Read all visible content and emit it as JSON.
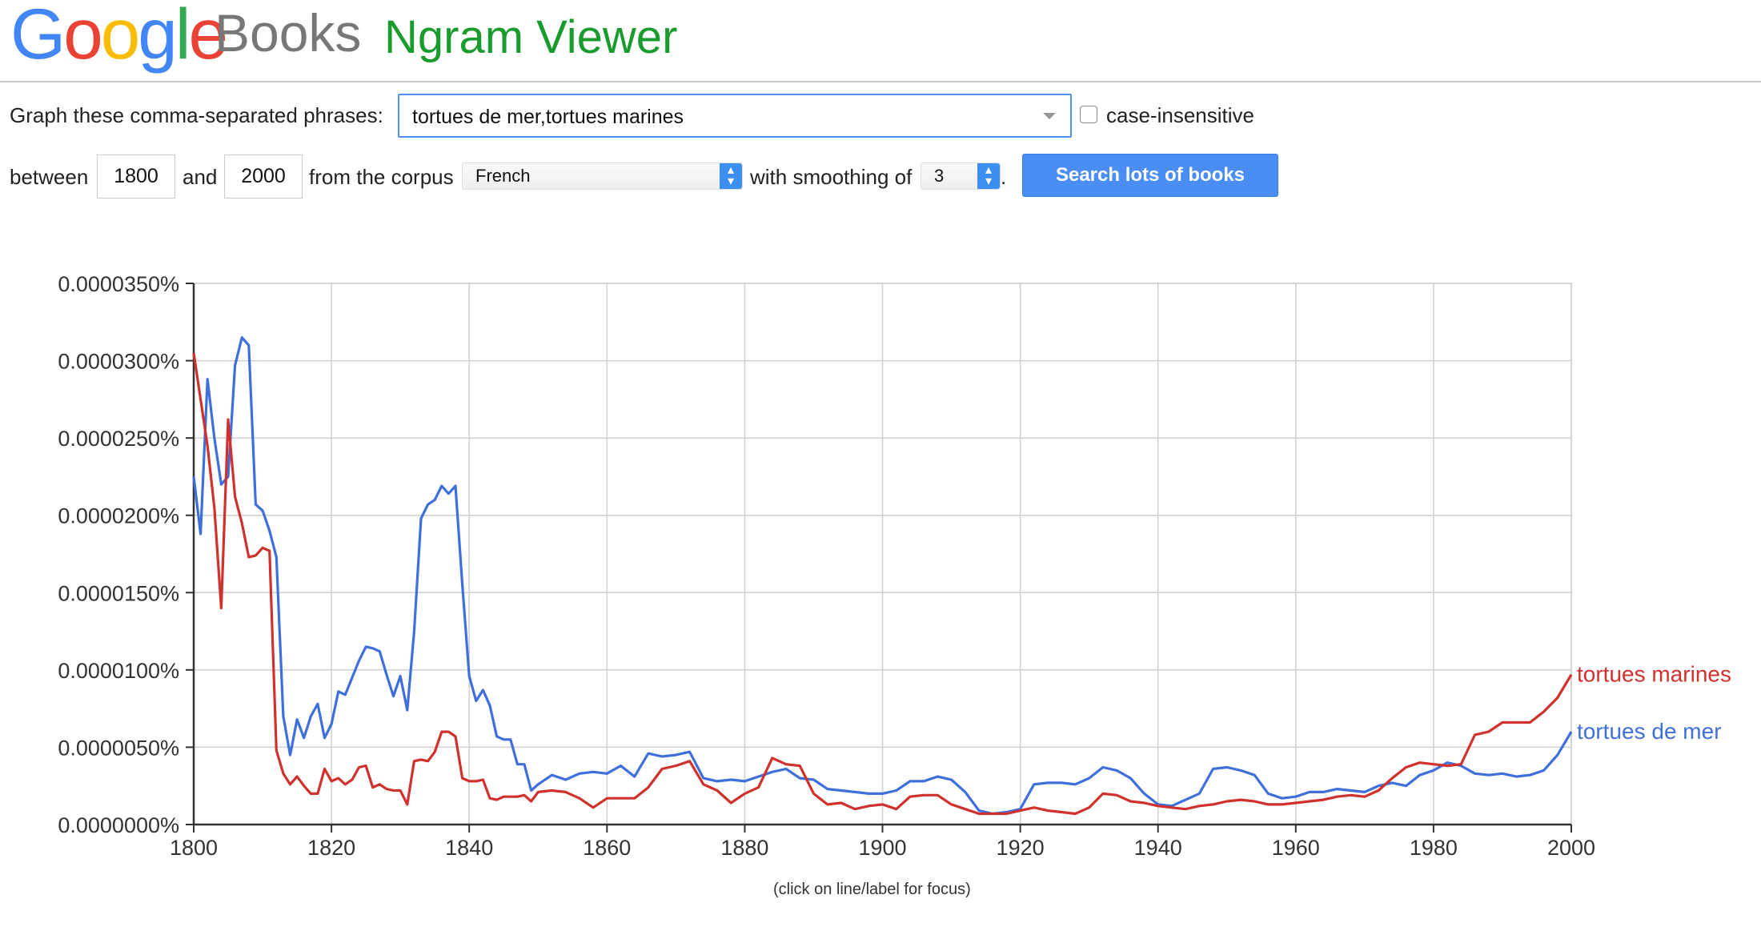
{
  "header": {
    "logo_google": [
      "G",
      "o",
      "o",
      "g",
      "l",
      "e"
    ],
    "logo_books": "Books",
    "title": "Ngram Viewer"
  },
  "form": {
    "phrases_label": "Graph these comma-separated phrases:",
    "phrases_value": "tortues de mer,tortues marines",
    "case_insensitive_label": "case-insensitive",
    "case_insensitive_checked": false,
    "between_label": "between",
    "start_year": "1800",
    "and_label": "and",
    "end_year": "2000",
    "corpus_label": "from the corpus",
    "corpus_value": "French",
    "smoothing_label": "with smoothing of",
    "smoothing_value": "3",
    "period": ".",
    "search_button": "Search lots of books"
  },
  "colors": {
    "google": [
      "#4285f4",
      "#ea4335",
      "#fbbc05",
      "#4285f4",
      "#34a853",
      "#ea4335"
    ],
    "title": "#1a9b2d",
    "series_blue": "#3f6fdc",
    "series_red": "#d0312d"
  },
  "caption": "(click on line/label for focus)",
  "chart_data": {
    "type": "line",
    "xlim": [
      1800,
      2000
    ],
    "ylim": [
      0,
      3.5e-05
    ],
    "ytick_labels": [
      "0.0000000%",
      "0.0000050%",
      "0.0000100%",
      "0.0000150%",
      "0.0000200%",
      "0.0000250%",
      "0.0000300%",
      "0.0000350%"
    ],
    "xtick_labels": [
      "1800",
      "1820",
      "1840",
      "1860",
      "1880",
      "1900",
      "1920",
      "1940",
      "1960",
      "1980",
      "2000"
    ],
    "grid": true,
    "legend": "right end of lines",
    "series": [
      {
        "name": "tortues de mer",
        "color": "#3f6fdc",
        "x": [
          1800,
          1801,
          1802,
          1803,
          1804,
          1805,
          1806,
          1807,
          1808,
          1809,
          1810,
          1811,
          1812,
          1813,
          1814,
          1815,
          1816,
          1817,
          1818,
          1819,
          1820,
          1821,
          1822,
          1823,
          1824,
          1825,
          1826,
          1827,
          1828,
          1829,
          1830,
          1831,
          1832,
          1833,
          1834,
          1835,
          1836,
          1837,
          1838,
          1839,
          1840,
          1841,
          1842,
          1843,
          1844,
          1845,
          1846,
          1847,
          1848,
          1849,
          1850,
          1852,
          1854,
          1856,
          1858,
          1860,
          1862,
          1864,
          1866,
          1868,
          1870,
          1872,
          1874,
          1876,
          1878,
          1880,
          1882,
          1884,
          1886,
          1888,
          1890,
          1892,
          1894,
          1896,
          1898,
          1900,
          1902,
          1904,
          1906,
          1908,
          1910,
          1912,
          1914,
          1916,
          1918,
          1920,
          1922,
          1924,
          1926,
          1928,
          1930,
          1932,
          1934,
          1936,
          1938,
          1940,
          1942,
          1944,
          1946,
          1948,
          1950,
          1952,
          1954,
          1956,
          1958,
          1960,
          1962,
          1964,
          1966,
          1968,
          1970,
          1972,
          1974,
          1976,
          1978,
          1980,
          1982,
          1984,
          1986,
          1988,
          1990,
          1992,
          1994,
          1996,
          1998,
          2000
        ],
        "y": [
          2.25e-05,
          1.88e-05,
          2.88e-05,
          2.5e-05,
          2.2e-05,
          2.25e-05,
          2.97e-05,
          3.15e-05,
          3.1e-05,
          2.07e-05,
          2.03e-05,
          1.9e-05,
          1.73e-05,
          7e-06,
          4.5e-06,
          6.8e-06,
          5.6e-06,
          7e-06,
          7.8e-06,
          5.6e-06,
          6.5e-06,
          8.6e-06,
          8.4e-06,
          9.5e-06,
          1.06e-05,
          1.15e-05,
          1.14e-05,
          1.12e-05,
          9.7e-06,
          8.3e-06,
          9.6e-06,
          7.4e-06,
          1.25e-05,
          1.98e-05,
          2.07e-05,
          2.1e-05,
          2.19e-05,
          2.14e-05,
          2.19e-05,
          1.55e-05,
          9.6e-06,
          8e-06,
          8.7e-06,
          7.7e-06,
          5.7e-06,
          5.5e-06,
          5.5e-06,
          3.9e-06,
          3.9e-06,
          2.2e-06,
          2.6e-06,
          3.2e-06,
          2.9e-06,
          3.3e-06,
          3.4e-06,
          3.3e-06,
          3.8e-06,
          3.1e-06,
          4.6e-06,
          4.4e-06,
          4.5e-06,
          4.7e-06,
          3e-06,
          2.8e-06,
          2.9e-06,
          2.8e-06,
          3.1e-06,
          3.4e-06,
          3.6e-06,
          3e-06,
          2.9e-06,
          2.3e-06,
          2.2e-06,
          2.1e-06,
          2e-06,
          2e-06,
          2.2e-06,
          2.8e-06,
          2.8e-06,
          3.1e-06,
          2.9e-06,
          2.1e-06,
          9e-07,
          7e-07,
          8e-07,
          1e-06,
          2.6e-06,
          2.7e-06,
          2.7e-06,
          2.6e-06,
          3e-06,
          3.7e-06,
          3.5e-06,
          3e-06,
          2e-06,
          1.3e-06,
          1.2e-06,
          1.6e-06,
          2e-06,
          3.6e-06,
          3.7e-06,
          3.5e-06,
          3.2e-06,
          2e-06,
          1.7e-06,
          1.8e-06,
          2.1e-06,
          2.1e-06,
          2.3e-06,
          2.2e-06,
          2.1e-06,
          2.5e-06,
          2.7e-06,
          2.5e-06,
          3.2e-06,
          3.5e-06,
          4e-06,
          3.8e-06,
          3.3e-06,
          3.2e-06,
          3.3e-06,
          3.1e-06,
          3.2e-06,
          3.5e-06,
          4.5e-06,
          6e-06
        ]
      },
      {
        "name": "tortues marines",
        "color": "#d0312d",
        "x": [
          1800,
          1801,
          1802,
          1803,
          1804,
          1805,
          1806,
          1807,
          1808,
          1809,
          1810,
          1811,
          1812,
          1813,
          1814,
          1815,
          1816,
          1817,
          1818,
          1819,
          1820,
          1821,
          1822,
          1823,
          1824,
          1825,
          1826,
          1827,
          1828,
          1829,
          1830,
          1831,
          1832,
          1833,
          1834,
          1835,
          1836,
          1837,
          1838,
          1839,
          1840,
          1841,
          1842,
          1843,
          1844,
          1845,
          1846,
          1847,
          1848,
          1849,
          1850,
          1852,
          1854,
          1856,
          1858,
          1860,
          1862,
          1864,
          1866,
          1868,
          1870,
          1872,
          1874,
          1876,
          1878,
          1880,
          1882,
          1884,
          1886,
          1888,
          1890,
          1892,
          1894,
          1896,
          1898,
          1900,
          1902,
          1904,
          1906,
          1908,
          1910,
          1912,
          1914,
          1916,
          1918,
          1920,
          1922,
          1924,
          1926,
          1928,
          1930,
          1932,
          1934,
          1936,
          1938,
          1940,
          1942,
          1944,
          1946,
          1948,
          1950,
          1952,
          1954,
          1956,
          1958,
          1960,
          1962,
          1964,
          1966,
          1968,
          1970,
          1972,
          1974,
          1976,
          1978,
          1980,
          1982,
          1984,
          1986,
          1988,
          1990,
          1992,
          1994,
          1996,
          1998,
          2000
        ],
        "y": [
          3.05e-05,
          2.75e-05,
          2.45e-05,
          2.05e-05,
          1.4e-05,
          2.62e-05,
          2.12e-05,
          1.95e-05,
          1.73e-05,
          1.74e-05,
          1.79e-05,
          1.77e-05,
          4.8e-06,
          3.3e-06,
          2.6e-06,
          3.1e-06,
          2.5e-06,
          2e-06,
          2e-06,
          3.6e-06,
          2.8e-06,
          3e-06,
          2.6e-06,
          2.9e-06,
          3.7e-06,
          3.8e-06,
          2.4e-06,
          2.6e-06,
          2.3e-06,
          2.2e-06,
          2.2e-06,
          1.3e-06,
          4.1e-06,
          4.2e-06,
          4.1e-06,
          4.7e-06,
          6e-06,
          6e-06,
          5.7e-06,
          3e-06,
          2.8e-06,
          2.8e-06,
          2.9e-06,
          1.7e-06,
          1.6e-06,
          1.8e-06,
          1.8e-06,
          1.8e-06,
          1.9e-06,
          1.5e-06,
          2.1e-06,
          2.2e-06,
          2.1e-06,
          1.7e-06,
          1.1e-06,
          1.7e-06,
          1.7e-06,
          1.7e-06,
          2.4e-06,
          3.6e-06,
          3.8e-06,
          4.1e-06,
          2.6e-06,
          2.2e-06,
          1.4e-06,
          2e-06,
          2.4e-06,
          4.3e-06,
          3.9e-06,
          3.8e-06,
          2e-06,
          1.3e-06,
          1.4e-06,
          1e-06,
          1.2e-06,
          1.3e-06,
          1e-06,
          1.8e-06,
          1.9e-06,
          1.9e-06,
          1.3e-06,
          1e-06,
          7e-07,
          7e-07,
          7e-07,
          9e-07,
          1.1e-06,
          9e-07,
          8e-07,
          7e-07,
          1.1e-06,
          2e-06,
          1.9e-06,
          1.5e-06,
          1.4e-06,
          1.2e-06,
          1.1e-06,
          1e-06,
          1.2e-06,
          1.3e-06,
          1.5e-06,
          1.6e-06,
          1.5e-06,
          1.3e-06,
          1.3e-06,
          1.4e-06,
          1.5e-06,
          1.6e-06,
          1.8e-06,
          1.9e-06,
          1.8e-06,
          2.2e-06,
          3e-06,
          3.7e-06,
          4e-06,
          3.9e-06,
          3.8e-06,
          3.9e-06,
          5.8e-06,
          6e-06,
          6.6e-06,
          6.6e-06,
          6.6e-06,
          7.3e-06,
          8.2e-06,
          9.7e-06
        ]
      }
    ]
  }
}
